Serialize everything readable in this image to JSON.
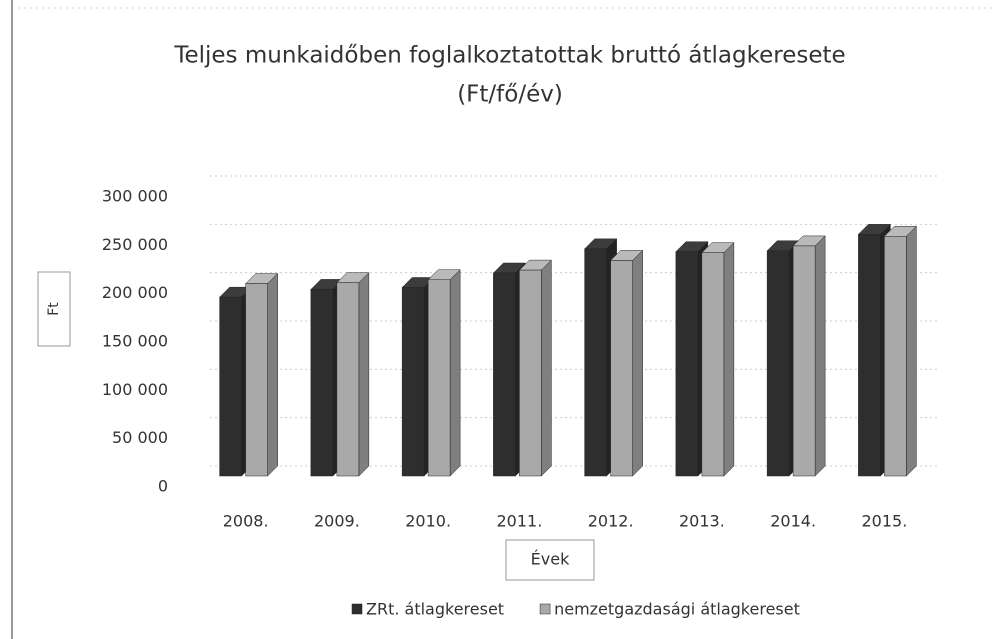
{
  "chart_data": {
    "type": "bar3d",
    "title": "Teljes munkaidőben foglalkoztatottak bruttó átlagkeresete",
    "subtitle": "(Ft/fő/év)",
    "y_label": "Ft",
    "x_label": "Évek",
    "categories": [
      "2008.",
      "2009.",
      "2010.",
      "2011.",
      "2012.",
      "2013.",
      "2014.",
      "2015."
    ],
    "series": [
      {
        "name": "ZRt. átlagkereset",
        "color": "#2e2e2e",
        "values": [
          185000,
          193000,
          195000,
          210000,
          235000,
          232000,
          233000,
          250000
        ]
      },
      {
        "name": "nemzetgazdasági átlagkereset",
        "color": "#a9a9a9",
        "values": [
          199000,
          200000,
          203000,
          213000,
          223000,
          231000,
          238000,
          248000
        ]
      }
    ],
    "ylim": [
      0,
      300000
    ],
    "yticks": [
      0,
      {
        "value": 50000,
        "label": "50 000"
      },
      {
        "value": 100000,
        "label": "100 000"
      },
      {
        "value": 150000,
        "label": "150 000"
      },
      {
        "value": 200000,
        "label": "200 000"
      },
      {
        "value": 250000,
        "label": "250 000"
      },
      {
        "value": 300000,
        "label": "300 000"
      }
    ],
    "grid": true,
    "legend": "bottom"
  }
}
